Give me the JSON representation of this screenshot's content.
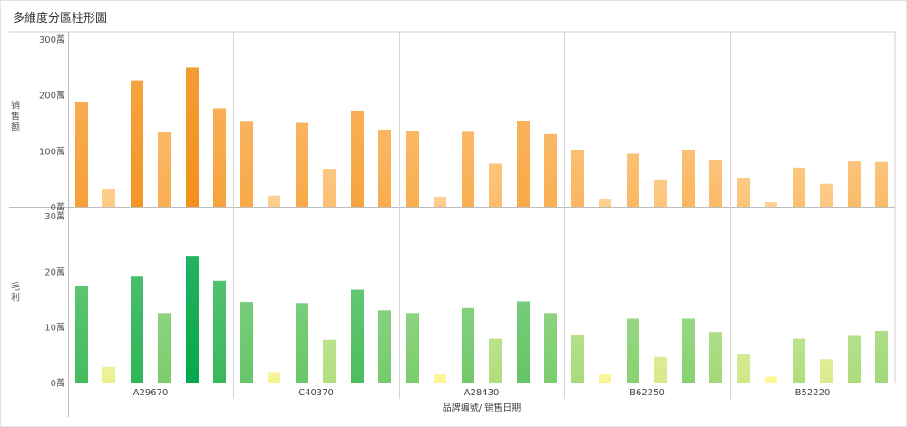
{
  "title": "多維度分區柱形圖",
  "chart_data": {
    "type": "bar",
    "xlabel": "品牌编號/ 销售日期",
    "groups": [
      "A29670",
      "C40370",
      "A28430",
      "B62250",
      "B52220"
    ],
    "panels": [
      {
        "name": "sales",
        "ylabel": "销售额",
        "ylim": [
          0,
          300
        ],
        "ticks": [
          {
            "v": 0,
            "t": "0萬"
          },
          {
            "v": 100,
            "t": "100萬"
          },
          {
            "v": 200,
            "t": "200萬"
          },
          {
            "v": 300,
            "t": "300萬"
          }
        ],
        "values": [
          [
            188,
            32,
            226,
            133,
            249,
            176
          ],
          [
            152,
            20,
            150,
            68,
            172,
            138
          ],
          [
            136,
            18,
            134,
            77,
            153,
            130
          ],
          [
            102,
            14,
            95,
            49,
            101,
            84
          ],
          [
            52,
            8,
            70,
            41,
            81,
            80
          ]
        ],
        "colors": [
          "#f3901a",
          "#ffcf8c"
        ]
      },
      {
        "name": "profit",
        "ylabel": "毛利",
        "ylim": [
          0,
          30
        ],
        "ticks": [
          {
            "v": 0,
            "t": "0萬"
          },
          {
            "v": 10,
            "t": "10萬"
          },
          {
            "v": 20,
            "t": "20萬"
          },
          {
            "v": 30,
            "t": "30萬"
          }
        ],
        "values": [
          [
            17.3,
            2.8,
            19.2,
            12.5,
            22.8,
            18.3
          ],
          [
            14.5,
            1.9,
            14.3,
            7.7,
            16.7,
            13.0
          ],
          [
            12.5,
            1.6,
            13.4,
            7.9,
            14.6,
            12.5
          ],
          [
            8.6,
            1.5,
            11.5,
            4.6,
            11.5,
            9.1
          ],
          [
            5.2,
            1.1,
            7.9,
            4.2,
            8.4,
            9.3
          ]
        ],
        "colors": [
          "#06a84c",
          "#fff694"
        ]
      }
    ]
  }
}
